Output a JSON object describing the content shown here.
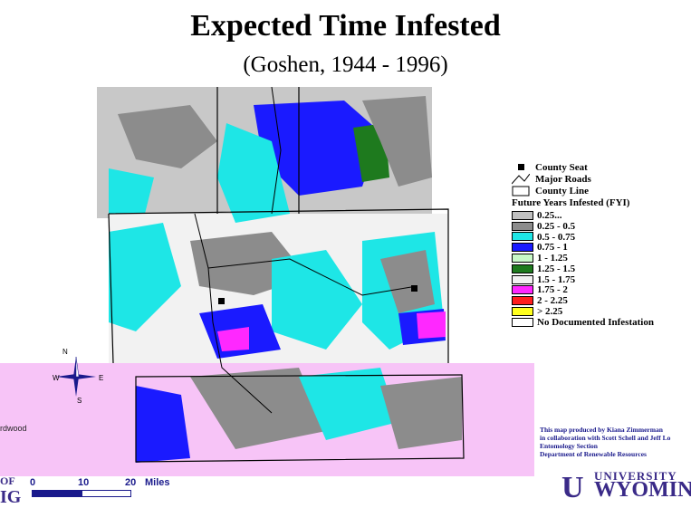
{
  "title": "Expected Time Infested",
  "subtitle": "(Goshen, 1944 - 1996)",
  "legend": {
    "county_seat": "County Seat",
    "major_roads": "Major Roads",
    "county_line": "County Line",
    "heading": "Future Years Infested (FYI)",
    "classes": [
      {
        "label": "0.25...",
        "color": "#c0c0c0"
      },
      {
        "label": "0.25 - 0.5",
        "color": "#8c8c8c"
      },
      {
        "label": "0.5 - 0.75",
        "color": "#1ee6e6"
      },
      {
        "label": "0.75 - 1",
        "color": "#1a1aff"
      },
      {
        "label": "1 - 1.25",
        "color": "#c8f8c8"
      },
      {
        "label": "1.25 - 1.5",
        "color": "#1e7a1e"
      },
      {
        "label": "1.5 - 1.75",
        "color": "#f2f2f2"
      },
      {
        "label": "1.75 - 2",
        "color": "#ff28ff"
      },
      {
        "label": "2 - 2.25",
        "color": "#ff1e1e"
      },
      {
        "label": "> 2.25",
        "color": "#ffff1e"
      },
      {
        "label": "No Documented Infestation",
        "color": "#ffffff"
      }
    ]
  },
  "colors": {
    "lowland": "#c8c8c8",
    "pink": "#f7c4f7",
    "cyan": "#1ee6e6",
    "blue": "#1a1aff",
    "grey": "#8c8c8c",
    "magenta": "#ff28ff",
    "green": "#1e7a1e"
  },
  "credit": {
    "line1": "This map produced by Kiana Zimmerman",
    "line2": "in collaboration with Scott Schell and Jeff Lo",
    "line3": "Entomology Section",
    "line4": "Department of Renewable Resources"
  },
  "university": {
    "u": "U",
    "line1": "UNIVERSITY",
    "line2": "WYOMIN"
  },
  "scale": {
    "t0": "0",
    "t1": "10",
    "t2": "20",
    "unit": "Miles"
  },
  "compass": {
    "n": "N",
    "s": "S",
    "w": "W",
    "e": "E"
  },
  "edge_text": {
    "left_label": "rdwood",
    "cut1": "OF",
    "cut2": "IG"
  }
}
